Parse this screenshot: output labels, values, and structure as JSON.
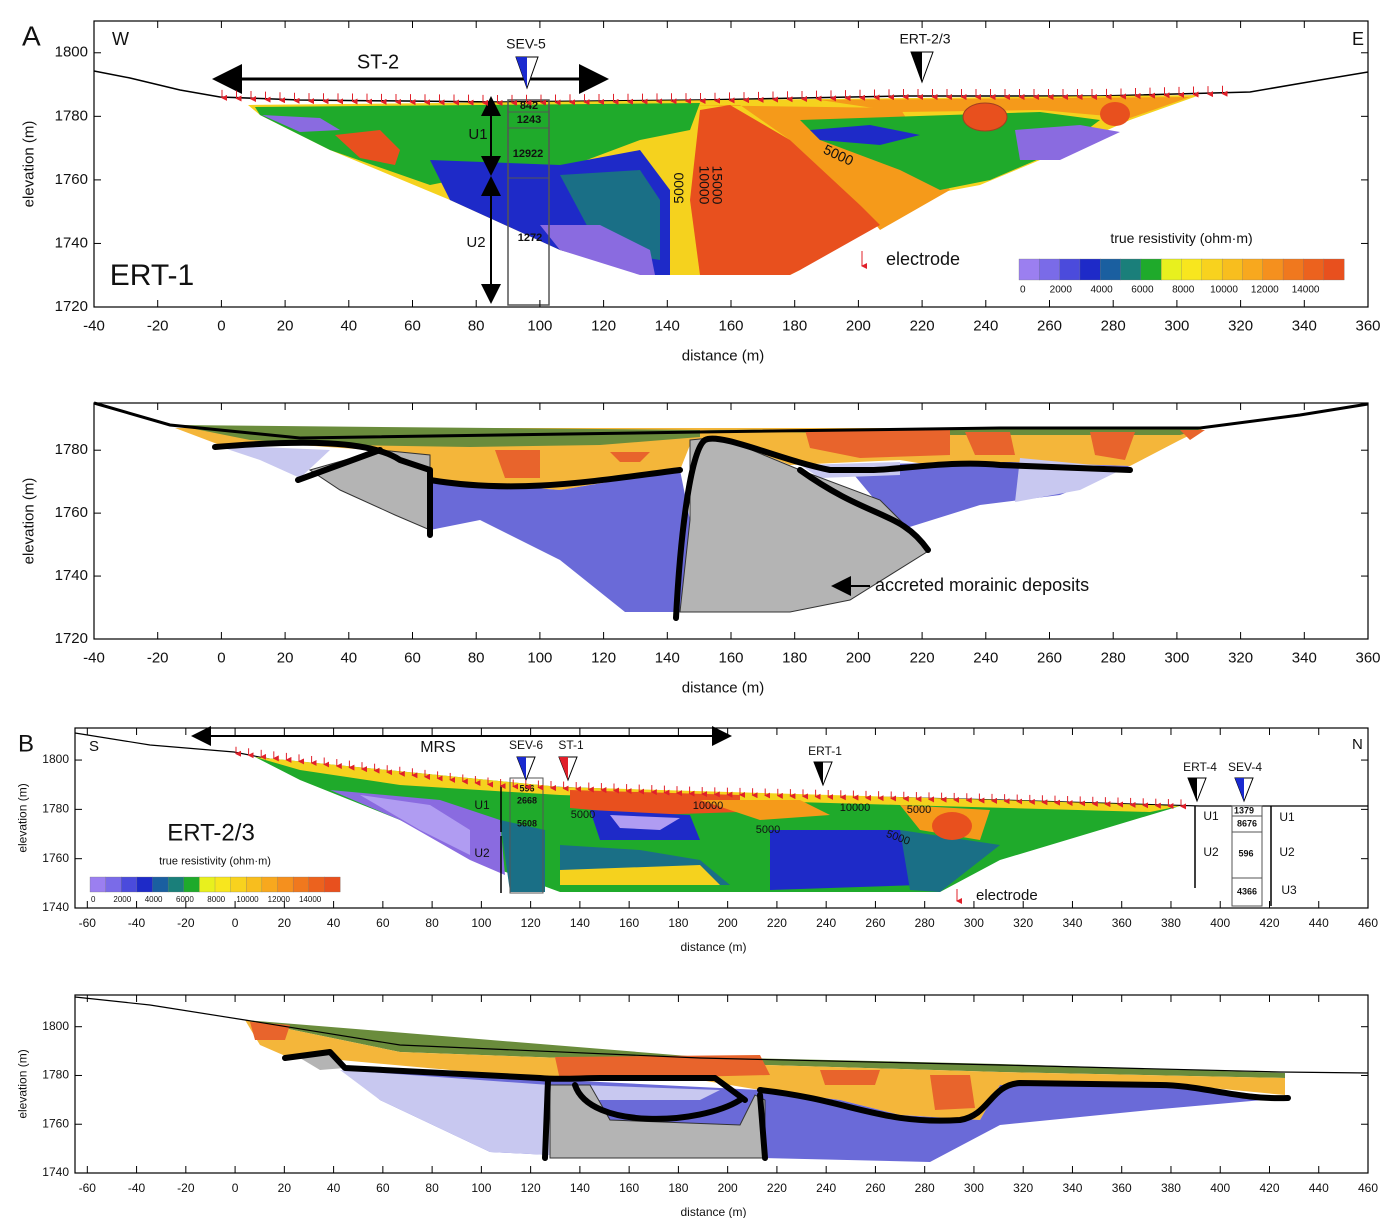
{
  "chart_data": [
    {
      "type": "resistivity-section",
      "panel": "A",
      "title": "ERT-1",
      "left_label": "W",
      "right_label": "E",
      "xlabel": "distance (m)",
      "ylabel": "elevation (m)",
      "xlim": [
        -40,
        360
      ],
      "ylim": [
        1720,
        1810
      ],
      "xticks": [
        -40,
        -20,
        0,
        20,
        40,
        60,
        80,
        100,
        120,
        140,
        160,
        180,
        200,
        220,
        240,
        260,
        280,
        300,
        320,
        340,
        360
      ],
      "yticks": [
        1720,
        1740,
        1760,
        1780,
        1800
      ],
      "colorbar": {
        "label": "true resistivity (ohm·m)",
        "ticks": [
          0,
          2000,
          4000,
          6000,
          8000,
          10000,
          12000,
          14000
        ]
      },
      "markers": [
        "ST-2",
        "SEV-5",
        "ERT-2/3"
      ],
      "units": [
        "U1",
        "U2"
      ],
      "legend": "electrode",
      "sounding": [
        842,
        1243,
        12922,
        1272
      ],
      "contours": [
        5000,
        10000,
        15000,
        5000
      ]
    },
    {
      "type": "geologic-section",
      "xlabel": "distance (m)",
      "ylabel": "elevation (m)",
      "xlim": [
        -40,
        360
      ],
      "ylim": [
        1720,
        1795
      ],
      "xticks": [
        -40,
        -20,
        0,
        20,
        40,
        60,
        80,
        100,
        120,
        140,
        160,
        180,
        200,
        220,
        240,
        260,
        280,
        300,
        320,
        340,
        360
      ],
      "yticks": [
        1720,
        1740,
        1760,
        1780
      ],
      "annotation": "accreted morainic deposits"
    },
    {
      "type": "resistivity-section",
      "panel": "B",
      "title": "ERT-2/3",
      "left_label": "S",
      "right_label": "N",
      "xlabel": "distance (m)",
      "ylabel": "elevation (m)",
      "xlim": [
        -65,
        460
      ],
      "ylim": [
        1740,
        1813
      ],
      "xticks": [
        -60,
        -40,
        -20,
        0,
        20,
        40,
        60,
        80,
        100,
        120,
        140,
        160,
        180,
        200,
        220,
        240,
        260,
        280,
        300,
        320,
        340,
        360,
        380,
        400,
        420,
        440,
        460
      ],
      "yticks": [
        1740,
        1760,
        1780,
        1800
      ],
      "colorbar": {
        "label": "true resistivity (ohm·m)",
        "ticks": [
          0,
          2000,
          4000,
          6000,
          8000,
          10000,
          12000,
          14000
        ]
      },
      "markers": [
        "MRS",
        "SEV-6",
        "ST-1",
        "ERT-1",
        "ERT-4",
        "SEV-4"
      ],
      "units": [
        "U1",
        "U2",
        "U1",
        "U2",
        "U1",
        "U2",
        "U3"
      ],
      "legend": "electrode",
      "sounding": [
        596,
        2668,
        5608,
        1379,
        8676,
        596,
        4366
      ],
      "contours": [
        5000,
        10000,
        10000,
        5000,
        5000,
        5000
      ]
    },
    {
      "type": "geologic-section",
      "xlabel": "distance (m)",
      "ylabel": "elevation (m)",
      "xlim": [
        -65,
        460
      ],
      "ylim": [
        1740,
        1813
      ],
      "xticks": [
        -60,
        -40,
        -20,
        0,
        20,
        40,
        60,
        80,
        100,
        120,
        140,
        160,
        180,
        200,
        220,
        240,
        260,
        280,
        300,
        320,
        340,
        360,
        380,
        400,
        420,
        440,
        460
      ],
      "yticks": [
        1740,
        1760,
        1780,
        1800
      ]
    }
  ]
}
